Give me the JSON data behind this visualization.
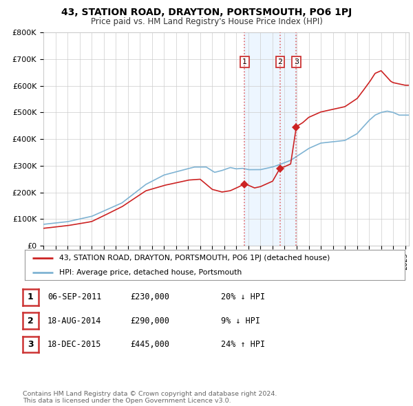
{
  "title": "43, STATION ROAD, DRAYTON, PORTSMOUTH, PO6 1PJ",
  "subtitle": "Price paid vs. HM Land Registry's House Price Index (HPI)",
  "ylabel_ticks": [
    "£0",
    "£100K",
    "£200K",
    "£300K",
    "£400K",
    "£500K",
    "£600K",
    "£700K",
    "£800K"
  ],
  "ylim": [
    0,
    800000
  ],
  "xlim_start": 1995.0,
  "xlim_end": 2025.3,
  "transaction_dates": [
    2011.68,
    2014.63,
    2015.97
  ],
  "transaction_prices": [
    230000,
    290000,
    445000
  ],
  "transaction_labels": [
    "1",
    "2",
    "3"
  ],
  "vline_color": "#dd4444",
  "red_line_color": "#cc2222",
  "blue_line_color": "#7fb3d3",
  "shade_color": "#ddeeff",
  "legend_label_red": "43, STATION ROAD, DRAYTON, PORTSMOUTH, PO6 1PJ (detached house)",
  "legend_label_blue": "HPI: Average price, detached house, Portsmouth",
  "table_data": [
    [
      "1",
      "06-SEP-2011",
      "£230,000",
      "20% ↓ HPI"
    ],
    [
      "2",
      "18-AUG-2014",
      "£290,000",
      "9% ↓ HPI"
    ],
    [
      "3",
      "18-DEC-2015",
      "£445,000",
      "24% ↑ HPI"
    ]
  ],
  "footnote": "Contains HM Land Registry data © Crown copyright and database right 2024.\nThis data is licensed under the Open Government Licence v3.0.",
  "background_color": "#ffffff",
  "grid_color": "#cccccc"
}
